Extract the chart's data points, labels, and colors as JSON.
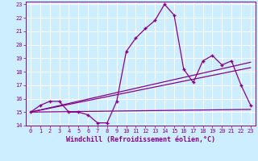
{
  "xlabel": "Windchill (Refroidissement éolien,°C)",
  "bg_color": "#cceeff",
  "grid_color": "#ffffff",
  "line_color": "#880088",
  "xlim": [
    -0.5,
    23.5
  ],
  "ylim": [
    14,
    23.2
  ],
  "yticks": [
    14,
    15,
    16,
    17,
    18,
    19,
    20,
    21,
    22,
    23
  ],
  "xticks": [
    0,
    1,
    2,
    3,
    4,
    5,
    6,
    7,
    8,
    9,
    10,
    11,
    12,
    13,
    14,
    15,
    16,
    17,
    18,
    19,
    20,
    21,
    22,
    23
  ],
  "series_main": {
    "x": [
      0,
      1,
      2,
      3,
      4,
      5,
      6,
      7,
      8,
      9,
      10,
      11,
      12,
      13,
      14,
      15,
      16,
      17,
      18,
      19,
      20,
      21,
      22,
      23
    ],
    "y": [
      15.0,
      15.5,
      15.8,
      15.8,
      15.0,
      15.0,
      14.8,
      14.2,
      14.2,
      15.8,
      19.5,
      20.5,
      21.2,
      21.8,
      23.0,
      22.2,
      18.2,
      17.2,
      18.8,
      19.2,
      18.5,
      18.8,
      17.0,
      15.5
    ]
  },
  "series_flat": {
    "x": [
      0,
      23
    ],
    "y": [
      15.0,
      15.2
    ]
  },
  "series_diag1": {
    "x": [
      0,
      23
    ],
    "y": [
      15.0,
      18.3
    ]
  },
  "series_diag2": {
    "x": [
      0,
      23
    ],
    "y": [
      15.0,
      18.7
    ]
  },
  "marker": "+",
  "markersize": 3.5,
  "markeredgewidth": 1.0,
  "linewidth": 0.9,
  "tick_fontsize": 5.0,
  "xlabel_fontsize": 6.0
}
